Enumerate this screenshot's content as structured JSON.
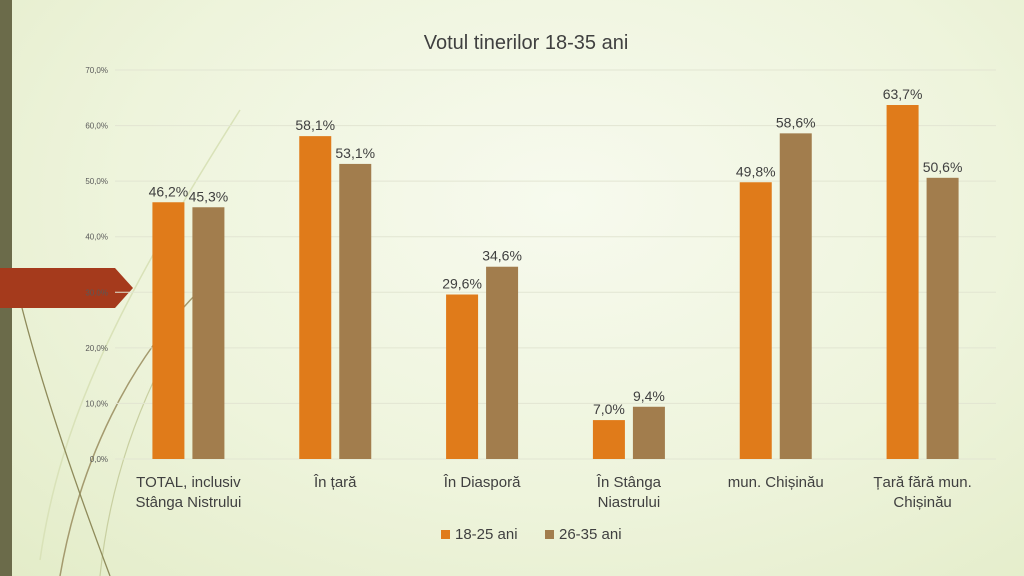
{
  "colors": {
    "series_1": "#e07b1a",
    "series_2": "#a27d4d",
    "accent_arrow": "#a53a1c",
    "left_bar": "#6b6b4a",
    "gridline": "#e2e5d2"
  },
  "chart_data": {
    "type": "bar",
    "title": "Votul tinerilor 18-35 ani",
    "xlabel": "",
    "ylabel": "",
    "ylim": [
      0,
      70
    ],
    "yticks": [
      "0,0%",
      "10,0%",
      "20,0%",
      "30,0%",
      "40,0%",
      "50,0%",
      "60,0%",
      "70,0%"
    ],
    "grid": true,
    "legend_position": "bottom",
    "categories": [
      [
        "TOTAL, inclusiv",
        "Stânga Nistrului"
      ],
      [
        "În țară"
      ],
      [
        "În Diasporă"
      ],
      [
        "În Stânga",
        "Niastrului"
      ],
      [
        "mun. Chișinău"
      ],
      [
        "Țară fără mun.",
        "Chișinău"
      ]
    ],
    "series": [
      {
        "name": "18-25 ani",
        "values": [
          46.2,
          58.1,
          29.6,
          7.0,
          49.8,
          63.7
        ],
        "labels": [
          "46,2%",
          "58,1%",
          "29,6%",
          "7,0%",
          "49,8%",
          "63,7%"
        ]
      },
      {
        "name": "26-35 ani",
        "values": [
          45.3,
          53.1,
          34.6,
          9.4,
          58.6,
          50.6
        ],
        "labels": [
          "45,3%",
          "53,1%",
          "34,6%",
          "9,4%",
          "58,6%",
          "50,6%"
        ]
      }
    ]
  }
}
